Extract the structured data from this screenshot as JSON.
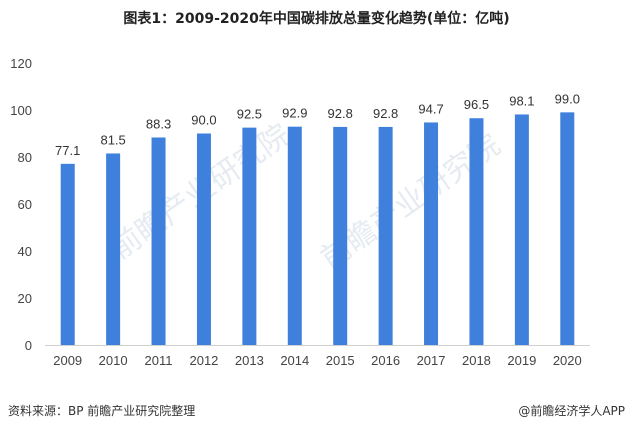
{
  "title": "图表1：2009-2020年中国碳排放总量变化趋势(单位：亿吨)",
  "source": "资料来源：BP 前瞻产业研究院整理",
  "brand": "@前瞻经济学人APP",
  "watermark": "前瞻产业研究院",
  "chart_data": {
    "type": "bar",
    "title": "图表1：2009-2020年中国碳排放总量变化趋势(单位：亿吨)",
    "categories": [
      "2009",
      "2010",
      "2011",
      "2012",
      "2013",
      "2014",
      "2015",
      "2016",
      "2017",
      "2018",
      "2019",
      "2020"
    ],
    "values": [
      77.1,
      81.5,
      88.3,
      90.0,
      92.5,
      92.9,
      92.8,
      92.8,
      94.7,
      96.5,
      98.1,
      99.0
    ],
    "data_labels": [
      "77.1",
      "81.5",
      "88.3",
      "90.0",
      "92.5",
      "92.9",
      "92.8",
      "92.8",
      "94.7",
      "96.5",
      "98.1",
      "99.0"
    ],
    "yticks": [
      "0",
      "20",
      "40",
      "60",
      "80",
      "100",
      "120"
    ],
    "ylim": [
      0,
      120
    ],
    "xlabel": "",
    "ylabel": "",
    "grid": false,
    "bar_color": "#3F80DC"
  }
}
